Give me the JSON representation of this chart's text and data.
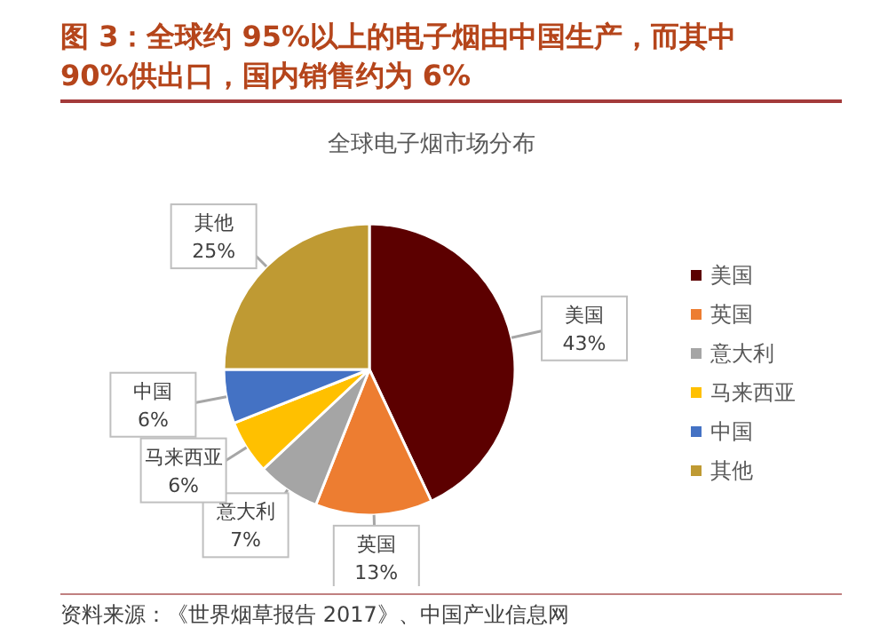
{
  "chart_data": {
    "type": "pie",
    "title": "图 3：全球约 95%以上的电子烟由中国生产，而其中90%供出口，国内销售约为 6%",
    "subtitle": "全球电子烟市场分布",
    "categories": [
      "美国",
      "英国",
      "意大利",
      "马来西亚",
      "中国",
      "其他"
    ],
    "values": [
      43,
      13,
      7,
      6,
      6,
      25
    ],
    "value_labels": [
      "43%",
      "13%",
      "7%",
      "6%",
      "6%",
      "25%"
    ],
    "colors": [
      "#5c0000",
      "#ed7d31",
      "#a5a5a5",
      "#ffc000",
      "#4472c4",
      "#bf9a33"
    ],
    "legend": "right",
    "annotations": [
      "资料来源：《世界烟草报告 2017》、中国产业信息网"
    ]
  }
}
